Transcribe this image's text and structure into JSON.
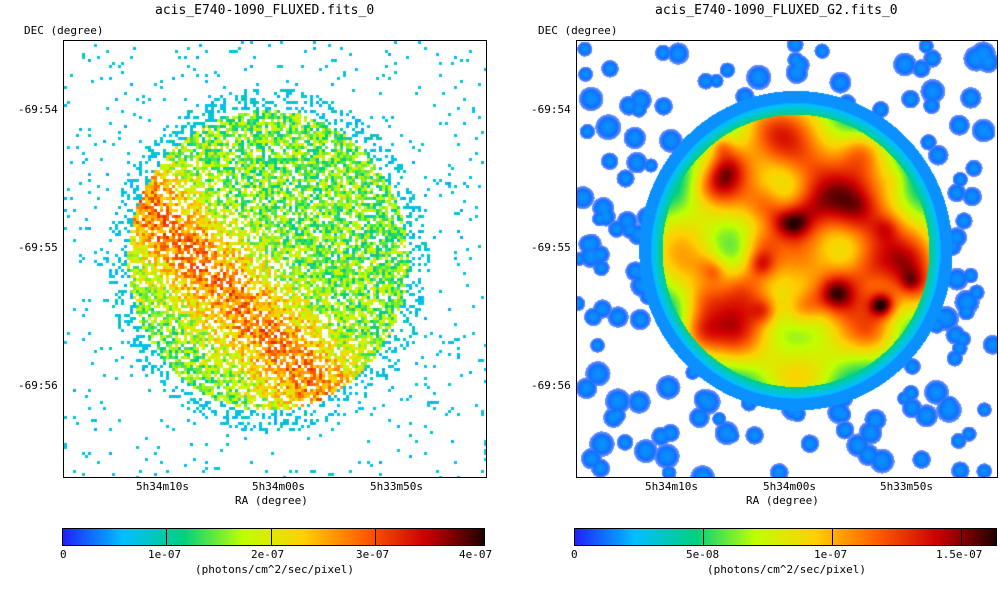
{
  "panels": [
    {
      "title": "acis_E740-1090_FLUXED.fits_0",
      "ylabel": "DEC (degree)",
      "xlabel": "RA (degree)",
      "yticks": [
        "-69:54",
        "-69:55",
        "-69:56"
      ],
      "xticks": [
        "5h34m10s",
        "5h34m00s",
        "5h33m50s"
      ],
      "colorbar": {
        "ticks": [
          "0",
          "1e-07",
          "2e-07",
          "3e-07",
          "4e-07"
        ],
        "units": "(photons/cm^2/sec/pixel)"
      }
    },
    {
      "title": "acis_E740-1090_FLUXED_G2.fits_0",
      "ylabel": "DEC (degree)",
      "xlabel": "RA (degree)",
      "yticks": [
        "-69:54",
        "-69:55",
        "-69:56"
      ],
      "xticks": [
        "5h34m10s",
        "5h34m00s",
        "5h33m50s"
      ],
      "colorbar": {
        "ticks": [
          "0",
          "5e-08",
          "1e-07",
          "1.5e-07"
        ],
        "units": "(photons/cm^2/sec/pixel)"
      }
    }
  ],
  "colors": {
    "colormap": [
      "#ffffff",
      "#2020ff",
      "#00c0ff",
      "#00d080",
      "#c0ff00",
      "#ffd000",
      "#ff6000",
      "#d00000",
      "#200000"
    ]
  }
}
